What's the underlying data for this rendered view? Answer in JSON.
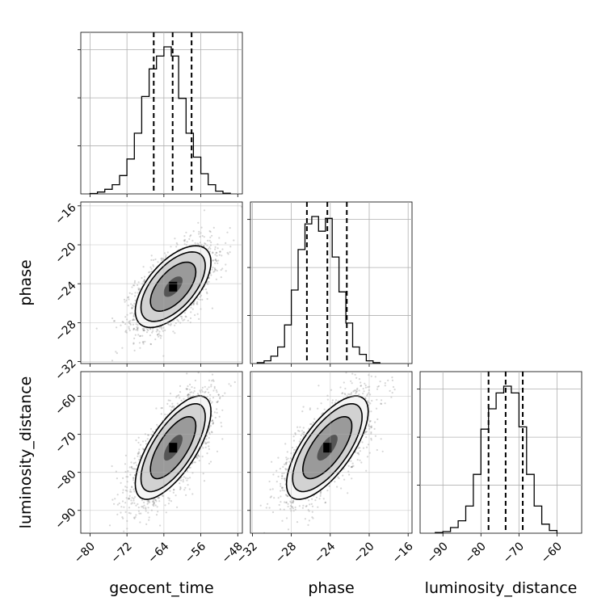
{
  "chart_data": {
    "type": "corner",
    "parameters": [
      {
        "name": "geocent_time",
        "ticks": [
          -80,
          -72,
          -64,
          -56,
          -48
        ],
        "range": [
          -82,
          -47
        ],
        "quantiles": [
          -66.2,
          -62.1,
          -58
        ]
      },
      {
        "name": "phase",
        "ticks": [
          -32,
          -28,
          -24,
          -20,
          -16
        ],
        "range": [
          -32.2,
          -15.6
        ],
        "quantiles": [
          -26.4,
          -24.3,
          -22.3
        ]
      },
      {
        "name": "luminosity_distance",
        "ticks": [
          -90,
          -80,
          -70,
          -60
        ],
        "range": [
          -96,
          -53.5
        ],
        "quantiles": [
          -78,
          -73.5,
          -69
        ]
      }
    ],
    "tick_labels": {
      "geocent_time": [
        "−80",
        "−72",
        "−64",
        "−56",
        "−48"
      ],
      "phase": [
        "−32",
        "−28",
        "−24",
        "−20",
        "−16"
      ],
      "luminosity_distance": [
        "−90",
        "−80",
        "−70",
        "−60"
      ]
    },
    "histograms": {
      "geocent_time": {
        "edges": [
          -80,
          -78.4,
          -76.8,
          -75.2,
          -73.6,
          -72,
          -70.4,
          -68.8,
          -67.2,
          -65.6,
          -64,
          -62.4,
          -60.8,
          -59.2,
          -57.6,
          -56,
          -54.4,
          -52.8,
          -51.2,
          -49.6
        ],
        "counts": [
          0.2,
          1.0,
          2.5,
          5.0,
          10.0,
          19.0,
          33.0,
          53.0,
          68.0,
          75.0,
          80.0,
          75.0,
          52.0,
          33.0,
          20.0,
          11.0,
          5.0,
          1.5,
          0.4
        ]
      },
      "phase": {
        "edges": [
          -31.5,
          -30.8,
          -30.1,
          -29.4,
          -28.7,
          -28,
          -27.3,
          -26.6,
          -25.9,
          -25.2,
          -24.5,
          -23.8,
          -23.1,
          -22.4,
          -21.7,
          -21,
          -20.3,
          -19.6,
          -18.9
        ],
        "counts": [
          0.5,
          1.5,
          4,
          9,
          21,
          40,
          62,
          76,
          80,
          72,
          79,
          58,
          39,
          22,
          9,
          5,
          1.5,
          0.5
        ]
      },
      "luminosity_distance": {
        "edges": [
          -92,
          -90,
          -88,
          -86,
          -84,
          -82,
          -80,
          -78,
          -76,
          -74,
          -72,
          -70,
          -68,
          -66,
          -64,
          -62,
          -60
        ],
        "counts": [
          0.3,
          0.7,
          2.5,
          5.5,
          12,
          26,
          46,
          55,
          62,
          65,
          62,
          47,
          26,
          12,
          4,
          1.2
        ]
      }
    },
    "pairs": [
      {
        "x": "geocent_time",
        "y": "phase",
        "center": [
          -62,
          -24.3
        ],
        "sigma": [
          4.1,
          2.1
        ],
        "rho": 0.6
      },
      {
        "x": "geocent_time",
        "y": "luminosity_distance",
        "center": [
          -62,
          -73.5
        ],
        "sigma": [
          4.1,
          6.8
        ],
        "rho": 0.7
      },
      {
        "x": "phase",
        "y": "luminosity_distance",
        "center": [
          -24.3,
          -73.5
        ],
        "sigma": [
          2.1,
          6.8
        ],
        "rho": 0.7
      }
    ],
    "contour_levels": [
      0.5,
      1.2,
      1.7,
      2.0
    ],
    "quantile_style": "dashed",
    "grid": true
  }
}
